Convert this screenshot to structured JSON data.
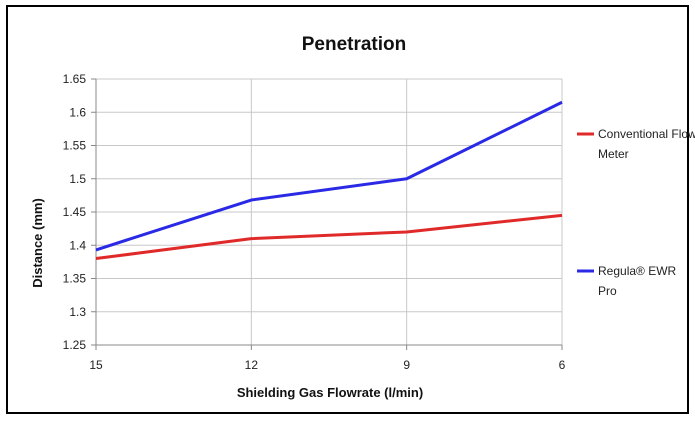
{
  "chart_data": {
    "type": "line",
    "title": "Penetration",
    "xlabel": "Shielding Gas Flowrate (l/min)",
    "ylabel": "Distance (mm)",
    "categories": [
      "15",
      "12",
      "9",
      "6"
    ],
    "ylim": [
      1.25,
      1.65
    ],
    "yticks": [
      "1.25",
      "1.3",
      "1.35",
      "1.4",
      "1.45",
      "1.5",
      "1.55",
      "1.6",
      "1.65"
    ],
    "grid": true,
    "legend_position": "right",
    "series": [
      {
        "name": "Conventional Flow Meter",
        "color": "#e02a2a",
        "values": [
          1.38,
          1.41,
          1.42,
          1.445
        ]
      },
      {
        "name": "Regula® EWR Pro",
        "color": "#2a2ae6",
        "values": [
          1.393,
          1.468,
          1.5,
          1.615
        ]
      }
    ]
  }
}
